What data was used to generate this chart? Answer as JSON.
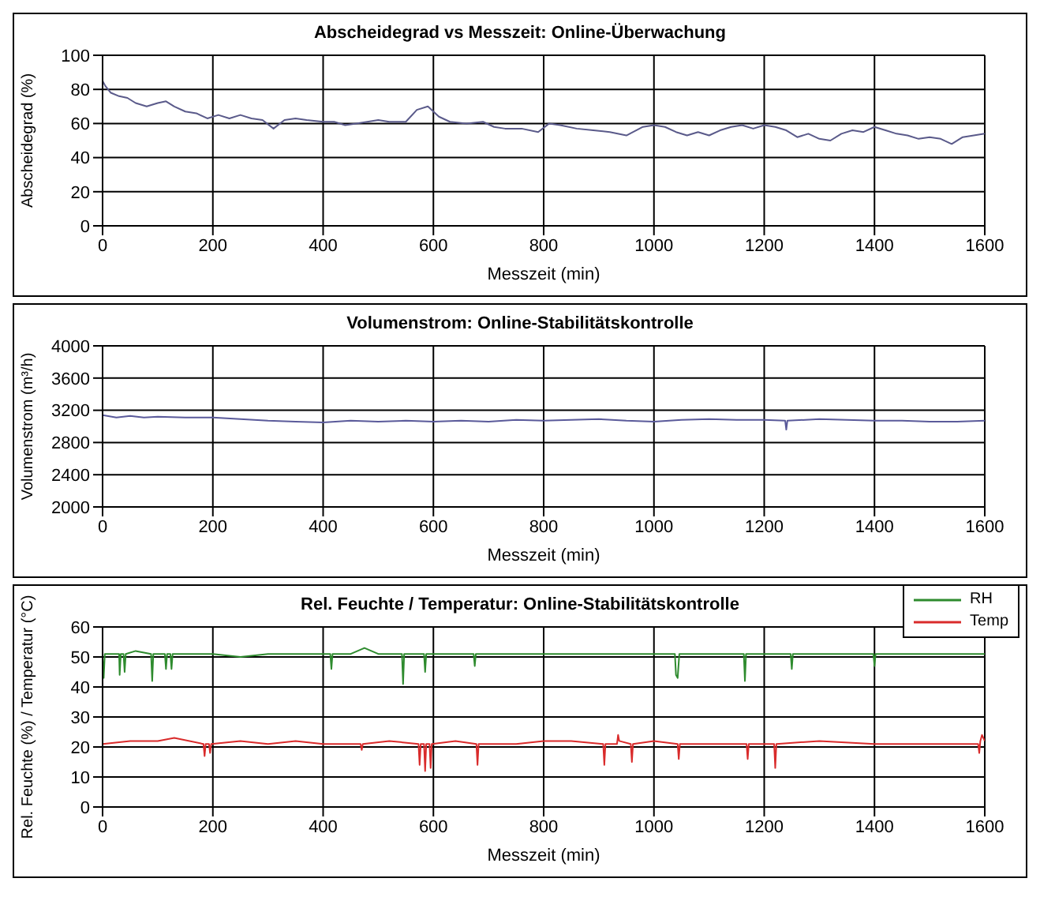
{
  "chart_data": [
    {
      "type": "line",
      "title": "Abscheidegrad vs Messzeit: Online-Überwachung",
      "xlabel": "Messzeit (min)",
      "ylabel": "Abscheidegrad (%)",
      "xlim": [
        0,
        1600
      ],
      "xticks": [
        0,
        200,
        400,
        600,
        800,
        1000,
        1200,
        1400,
        1600
      ],
      "ylim": [
        0,
        100
      ],
      "yticks": [
        0,
        20,
        40,
        60,
        80,
        100
      ],
      "grid": true,
      "marker": "none",
      "legend": false,
      "series": [
        {
          "color": "#5a5a8a",
          "x": [
            0,
            5,
            15,
            30,
            45,
            60,
            80,
            100,
            115,
            130,
            150,
            170,
            190,
            210,
            230,
            250,
            270,
            290,
            310,
            330,
            350,
            370,
            400,
            420,
            440,
            460,
            480,
            500,
            520,
            550,
            570,
            590,
            610,
            630,
            660,
            690,
            710,
            730,
            760,
            790,
            810,
            830,
            860,
            890,
            920,
            950,
            980,
            1000,
            1020,
            1040,
            1060,
            1080,
            1100,
            1120,
            1140,
            1160,
            1180,
            1200,
            1220,
            1240,
            1260,
            1280,
            1300,
            1320,
            1340,
            1360,
            1380,
            1400,
            1420,
            1440,
            1460,
            1480,
            1500,
            1520,
            1540,
            1560,
            1580,
            1600
          ],
          "values": [
            85,
            82,
            78,
            76,
            75,
            72,
            70,
            72,
            73,
            70,
            67,
            66,
            63,
            65,
            63,
            65,
            63,
            62,
            57,
            62,
            63,
            62,
            61,
            61,
            59,
            60,
            61,
            62,
            61,
            61,
            68,
            70,
            64,
            61,
            60,
            61,
            58,
            57,
            57,
            55,
            60,
            59,
            57,
            56,
            55,
            53,
            58,
            59,
            58,
            55,
            53,
            55,
            53,
            56,
            58,
            59,
            57,
            59,
            58,
            56,
            52,
            54,
            51,
            50,
            54,
            56,
            55,
            58,
            56,
            54,
            53,
            51,
            52,
            51,
            48,
            52,
            53,
            54
          ]
        }
      ]
    },
    {
      "type": "line",
      "title": "Volumenstrom: Online-Stabilitätskontrolle",
      "xlabel": "Messzeit (min)",
      "ylabel": "Volumenstrom (m³/h)",
      "xlim": [
        0,
        1600
      ],
      "xticks": [
        0,
        200,
        400,
        600,
        800,
        1000,
        1200,
        1400,
        1600
      ],
      "ylim": [
        2000,
        4000
      ],
      "yticks": [
        2000,
        2400,
        2800,
        3200,
        3600,
        4000
      ],
      "grid": true,
      "marker": "none",
      "legend": false,
      "series": [
        {
          "color": "#5a5a9a",
          "x": [
            0,
            25,
            50,
            75,
            100,
            150,
            200,
            250,
            300,
            350,
            400,
            450,
            500,
            550,
            600,
            650,
            700,
            750,
            800,
            850,
            900,
            950,
            1000,
            1050,
            1100,
            1150,
            1200,
            1238,
            1240,
            1242,
            1300,
            1350,
            1400,
            1450,
            1500,
            1550,
            1600
          ],
          "values": [
            3140,
            3110,
            3130,
            3110,
            3120,
            3110,
            3110,
            3090,
            3070,
            3060,
            3050,
            3070,
            3060,
            3070,
            3060,
            3070,
            3060,
            3080,
            3070,
            3080,
            3090,
            3070,
            3060,
            3080,
            3090,
            3080,
            3080,
            3070,
            2960,
            3070,
            3090,
            3080,
            3070,
            3070,
            3060,
            3060,
            3070
          ]
        }
      ]
    },
    {
      "type": "line",
      "title": "Rel. Feuchte / Temperatur: Online-Stabilitätskontrolle",
      "xlabel": "Messzeit (min)",
      "ylabel": "Rel. Feuchte (%) / Temperatur (°C)",
      "xlim": [
        0,
        1600
      ],
      "xticks": [
        0,
        200,
        400,
        600,
        800,
        1000,
        1200,
        1400,
        1600
      ],
      "ylim": [
        0,
        60
      ],
      "yticks": [
        0,
        10,
        20,
        30,
        40,
        50,
        60
      ],
      "grid": true,
      "marker": "none",
      "legend": "top right",
      "series": [
        {
          "name": "RH",
          "color": "#2e8b2e",
          "x": [
            0,
            2,
            4,
            20,
            30,
            31,
            33,
            38,
            40,
            42,
            60,
            88,
            90,
            92,
            113,
            115,
            117,
            123,
            125,
            127,
            150,
            200,
            250,
            300,
            350,
            400,
            413,
            415,
            417,
            450,
            475,
            500,
            543,
            545,
            547,
            583,
            585,
            587,
            620,
            673,
            675,
            677,
            700,
            750,
            800,
            850,
            900,
            950,
            1000,
            1038,
            1040,
            1043,
            1046,
            1100,
            1163,
            1165,
            1167,
            1200,
            1248,
            1250,
            1252,
            1300,
            1350,
            1398,
            1400,
            1402,
            1450,
            1500,
            1550,
            1600
          ],
          "values": [
            50,
            43,
            51,
            51,
            51,
            44,
            51,
            51,
            45,
            51,
            52,
            51,
            42,
            51,
            51,
            46,
            51,
            51,
            46,
            51,
            51,
            51,
            50,
            51,
            51,
            51,
            51,
            46,
            51,
            51,
            53,
            51,
            51,
            41,
            51,
            51,
            45,
            51,
            51,
            51,
            47,
            51,
            51,
            51,
            51,
            51,
            51,
            51,
            51,
            51,
            44,
            43,
            51,
            51,
            51,
            42,
            51,
            51,
            51,
            46,
            51,
            51,
            51,
            51,
            47,
            51,
            51,
            51,
            51,
            51
          ]
        },
        {
          "name": "Temp",
          "color": "#d92b2b",
          "x": [
            0,
            50,
            100,
            130,
            183,
            185,
            187,
            193,
            195,
            197,
            250,
            300,
            350,
            400,
            468,
            470,
            472,
            520,
            573,
            575,
            577,
            583,
            585,
            587,
            593,
            595,
            597,
            640,
            678,
            680,
            682,
            750,
            800,
            850,
            908,
            910,
            912,
            933,
            935,
            937,
            958,
            960,
            962,
            1000,
            1043,
            1045,
            1047,
            1100,
            1168,
            1170,
            1172,
            1218,
            1220,
            1222,
            1300,
            1400,
            1500,
            1588,
            1590,
            1592,
            1595,
            1600
          ],
          "values": [
            21,
            22,
            22,
            23,
            21,
            17,
            21,
            21,
            18,
            21,
            22,
            21,
            22,
            21,
            21,
            19,
            21,
            22,
            21,
            14,
            21,
            21,
            12,
            21,
            21,
            13,
            21,
            22,
            21,
            14,
            21,
            21,
            22,
            22,
            21,
            14,
            21,
            21,
            24,
            22,
            21,
            15,
            21,
            22,
            21,
            16,
            21,
            21,
            21,
            16,
            21,
            21,
            13,
            21,
            22,
            21,
            21,
            21,
            18,
            22,
            24,
            22
          ]
        }
      ]
    }
  ]
}
